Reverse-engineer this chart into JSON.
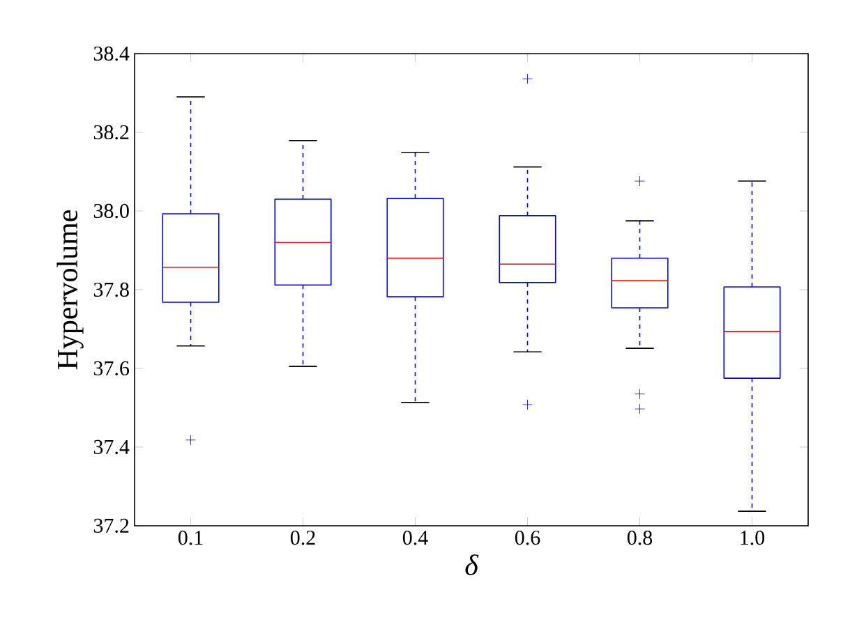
{
  "chart_data": {
    "type": "box",
    "xlabel": "δ",
    "ylabel": "Hypervolume",
    "color": "#0000ff",
    "categories": [
      "0.1",
      "0.2",
      "0.4",
      "0.6",
      "0.8",
      "1.0"
    ],
    "boxes": [
      {
        "low": 37.657,
        "q1": 37.768,
        "median": 37.857,
        "q3": 37.993,
        "high": 38.29,
        "outliers": [
          37.418
        ]
      },
      {
        "low": 37.605,
        "q1": 37.812,
        "median": 37.92,
        "q3": 38.03,
        "high": 38.179
      },
      {
        "low": 37.513,
        "q1": 37.782,
        "median": 37.88,
        "q3": 38.032,
        "high": 38.149
      },
      {
        "low": 37.642,
        "q1": 37.818,
        "median": 37.865,
        "q3": 37.988,
        "high": 38.112,
        "outliers": [
          38.336,
          37.508
        ]
      },
      {
        "low": 37.651,
        "q1": 37.754,
        "median": 37.823,
        "q3": 37.88,
        "high": 37.975,
        "outliers": [
          38.076,
          37.535,
          37.497
        ]
      },
      {
        "low": 37.237,
        "q1": 37.575,
        "median": 37.694,
        "q3": 37.807,
        "high": 38.076
      }
    ],
    "ylim": [
      37.2,
      38.4
    ],
    "yticks": [
      {
        "value": 37.2,
        "label": "37.2"
      },
      {
        "value": 37.4,
        "label": "37.4"
      },
      {
        "value": 37.6,
        "label": "37.6"
      },
      {
        "value": 37.8,
        "label": "37.8"
      },
      {
        "value": 38.0,
        "label": "38.0"
      },
      {
        "value": 38.2,
        "label": "38.2"
      },
      {
        "value": 38.4,
        "label": "38.4"
      }
    ],
    "grid": false
  }
}
